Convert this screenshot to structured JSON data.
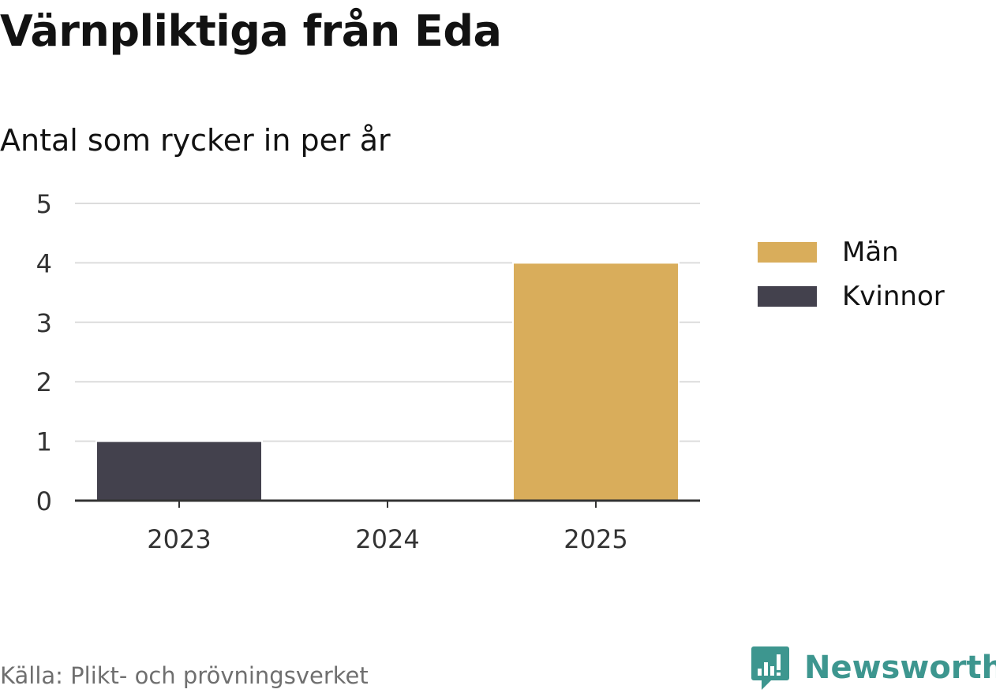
{
  "title": "Värnpliktiga från Eda",
  "subtitle": "Antal som rycker in per år",
  "source": "Källa: Plikt- och prövningsverket",
  "brand": {
    "name": "Newsworthy",
    "icon": "newsworthy-logo-icon",
    "color": "#3d968f"
  },
  "colors": {
    "Män": "#d9ad5b",
    "Kvinnor": "#43414d"
  },
  "chart_data": {
    "type": "bar",
    "stacked": true,
    "categories": [
      "2023",
      "2024",
      "2025"
    ],
    "series": [
      {
        "name": "Män",
        "color": "#d9ad5b",
        "values": [
          0,
          0,
          4
        ]
      },
      {
        "name": "Kvinnor",
        "color": "#43414d",
        "values": [
          1,
          0,
          0
        ]
      }
    ],
    "yticks": [
      0,
      1,
      2,
      3,
      4,
      5
    ],
    "ylim": [
      0,
      5
    ],
    "xlabel": "",
    "ylabel": "",
    "grid": true,
    "legend": "right"
  }
}
